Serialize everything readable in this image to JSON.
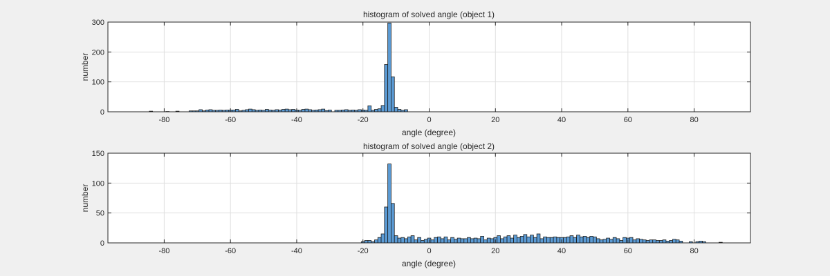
{
  "colors": {
    "figure_bg": "#f0f0f0",
    "axes_bg": "#ffffff",
    "bar_fill": "#5b9bd5",
    "bar_edge": "#1a1a1a",
    "grid": "#dfdfdf",
    "axis": "#262626"
  },
  "chart_data": [
    {
      "type": "bar",
      "title": "histogram of solved angle (object 1)",
      "xlabel": "angle (degree)",
      "ylabel": "number",
      "xlim": [
        -97,
        97
      ],
      "ylim": [
        0,
        300
      ],
      "xticks": [
        -80,
        -60,
        -40,
        -20,
        0,
        20,
        40,
        60,
        80
      ],
      "yticks": [
        0,
        100,
        200,
        300
      ],
      "grid": true,
      "bin_width": 1,
      "bins": [
        [
          -84,
          2
        ],
        [
          -79,
          1
        ],
        [
          -76,
          2
        ],
        [
          -72,
          3
        ],
        [
          -71,
          3
        ],
        [
          -70,
          3
        ],
        [
          -69,
          7
        ],
        [
          -68,
          3
        ],
        [
          -67,
          6
        ],
        [
          -66,
          7
        ],
        [
          -65,
          5
        ],
        [
          -64,
          5
        ],
        [
          -63,
          6
        ],
        [
          -62,
          5
        ],
        [
          -61,
          6
        ],
        [
          -60,
          6
        ],
        [
          -59,
          6
        ],
        [
          -58,
          8
        ],
        [
          -57,
          3
        ],
        [
          -56,
          5
        ],
        [
          -55,
          7
        ],
        [
          -54,
          9
        ],
        [
          -53,
          7
        ],
        [
          -52,
          5
        ],
        [
          -51,
          6
        ],
        [
          -50,
          5
        ],
        [
          -49,
          8
        ],
        [
          -48,
          6
        ],
        [
          -47,
          5
        ],
        [
          -46,
          7
        ],
        [
          -45,
          6
        ],
        [
          -44,
          8
        ],
        [
          -43,
          9
        ],
        [
          -42,
          7
        ],
        [
          -41,
          8
        ],
        [
          -40,
          6
        ],
        [
          -39,
          5
        ],
        [
          -38,
          8
        ],
        [
          -37,
          9
        ],
        [
          -36,
          7
        ],
        [
          -35,
          5
        ],
        [
          -34,
          6
        ],
        [
          -33,
          7
        ],
        [
          -32,
          9
        ],
        [
          -31,
          4
        ],
        [
          -30,
          6
        ],
        [
          -28,
          5
        ],
        [
          -27,
          5
        ],
        [
          -26,
          6
        ],
        [
          -25,
          7
        ],
        [
          -24,
          5
        ],
        [
          -23,
          6
        ],
        [
          -22,
          5
        ],
        [
          -21,
          7
        ],
        [
          -20,
          6
        ],
        [
          -19,
          5
        ],
        [
          -18,
          20
        ],
        [
          -17,
          5
        ],
        [
          -16,
          8
        ],
        [
          -15,
          10
        ],
        [
          -14,
          21
        ],
        [
          -13,
          158
        ],
        [
          -12,
          297
        ],
        [
          -11,
          117
        ],
        [
          -10,
          15
        ],
        [
          -9,
          8
        ],
        [
          -8,
          5
        ],
        [
          -7,
          7
        ]
      ]
    },
    {
      "type": "bar",
      "title": "histogram of solved angle (object 2)",
      "xlabel": "angle (degree)",
      "ylabel": "number",
      "xlim": [
        -97,
        97
      ],
      "ylim": [
        0,
        150
      ],
      "xticks": [
        -80,
        -60,
        -40,
        -20,
        0,
        20,
        40,
        60,
        80
      ],
      "yticks": [
        0,
        50,
        100,
        150
      ],
      "grid": true,
      "bin_width": 1,
      "bins": [
        [
          -20,
          2
        ],
        [
          -19,
          4
        ],
        [
          -18,
          4
        ],
        [
          -17,
          2
        ],
        [
          -16,
          5
        ],
        [
          -15,
          9
        ],
        [
          -14,
          15
        ],
        [
          -13,
          60
        ],
        [
          -12,
          132
        ],
        [
          -11,
          66
        ],
        [
          -10,
          12
        ],
        [
          -9,
          8
        ],
        [
          -8,
          9
        ],
        [
          -7,
          7
        ],
        [
          -6,
          10
        ],
        [
          -5,
          12
        ],
        [
          -4,
          5
        ],
        [
          -3,
          9
        ],
        [
          -2,
          4
        ],
        [
          -1,
          6
        ],
        [
          0,
          8
        ],
        [
          1,
          5
        ],
        [
          2,
          9
        ],
        [
          3,
          10
        ],
        [
          4,
          7
        ],
        [
          5,
          10
        ],
        [
          6,
          5
        ],
        [
          7,
          9
        ],
        [
          8,
          6
        ],
        [
          9,
          8
        ],
        [
          10,
          7
        ],
        [
          11,
          7
        ],
        [
          12,
          9
        ],
        [
          13,
          7
        ],
        [
          14,
          8
        ],
        [
          15,
          7
        ],
        [
          16,
          11
        ],
        [
          17,
          5
        ],
        [
          18,
          8
        ],
        [
          19,
          7
        ],
        [
          20,
          9
        ],
        [
          21,
          12
        ],
        [
          22,
          7
        ],
        [
          23,
          10
        ],
        [
          24,
          12
        ],
        [
          25,
          8
        ],
        [
          26,
          13
        ],
        [
          27,
          9
        ],
        [
          28,
          11
        ],
        [
          29,
          14
        ],
        [
          30,
          10
        ],
        [
          31,
          13
        ],
        [
          32,
          9
        ],
        [
          33,
          15
        ],
        [
          34,
          7
        ],
        [
          35,
          10
        ],
        [
          36,
          9
        ],
        [
          37,
          9
        ],
        [
          38,
          10
        ],
        [
          39,
          9
        ],
        [
          40,
          9
        ],
        [
          41,
          9
        ],
        [
          42,
          10
        ],
        [
          43,
          12
        ],
        [
          44,
          9
        ],
        [
          45,
          13
        ],
        [
          46,
          10
        ],
        [
          47,
          11
        ],
        [
          48,
          9
        ],
        [
          49,
          11
        ],
        [
          50,
          10
        ],
        [
          51,
          7
        ],
        [
          52,
          5
        ],
        [
          53,
          6
        ],
        [
          54,
          8
        ],
        [
          55,
          6
        ],
        [
          56,
          9
        ],
        [
          57,
          7
        ],
        [
          58,
          4
        ],
        [
          59,
          9
        ],
        [
          60,
          8
        ],
        [
          61,
          9
        ],
        [
          62,
          5
        ],
        [
          63,
          7
        ],
        [
          64,
          6
        ],
        [
          65,
          5
        ],
        [
          66,
          4
        ],
        [
          67,
          5
        ],
        [
          68,
          5
        ],
        [
          69,
          4
        ],
        [
          70,
          4
        ],
        [
          71,
          5
        ],
        [
          72,
          3
        ],
        [
          73,
          4
        ],
        [
          74,
          6
        ],
        [
          75,
          5
        ],
        [
          76,
          3
        ],
        [
          79,
          2
        ],
        [
          81,
          2
        ],
        [
          82,
          3
        ],
        [
          83,
          2
        ],
        [
          88,
          1
        ]
      ]
    }
  ]
}
